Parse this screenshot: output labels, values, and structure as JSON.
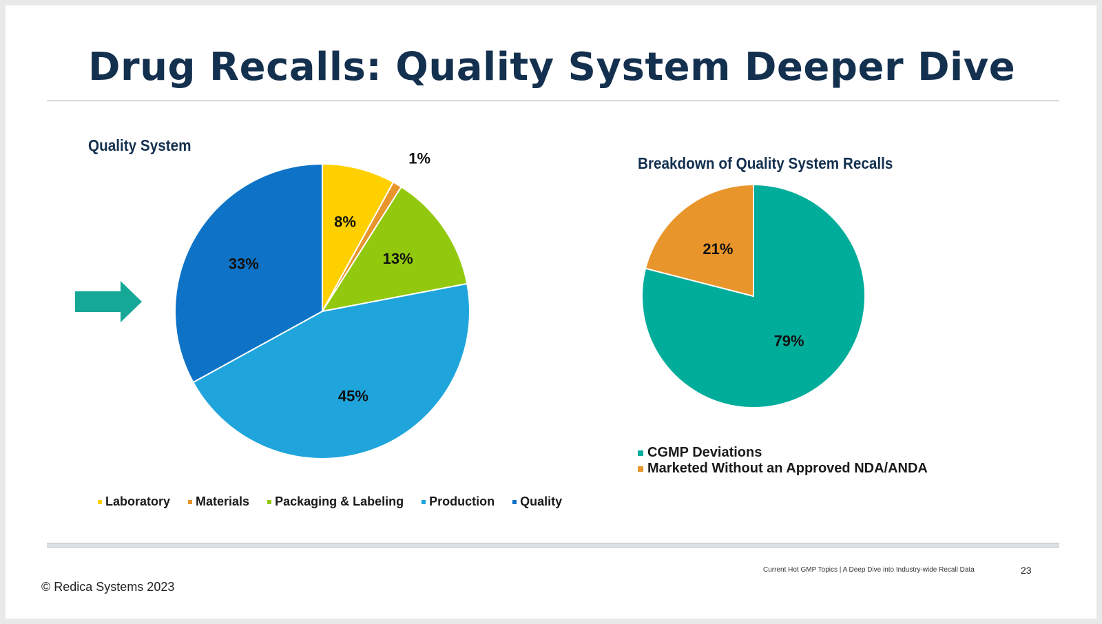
{
  "slide": {
    "title": "Drug Recalls: Quality System Deeper Dive",
    "footer_text": "Current Hot GMP Topics |  A Deep Dive into Industry-wide Recall Data",
    "page_number": "23",
    "copyright": "© Redica Systems 2023",
    "arrow_icon": "right-arrow-icon",
    "arrow_color": "#16a896"
  },
  "chart_data": [
    {
      "type": "pie",
      "title": "Quality System",
      "categories": [
        "Laboratory",
        "Materials",
        "Packaging & Labeling",
        "Production",
        "Quality"
      ],
      "values": [
        8,
        1,
        13,
        45,
        33
      ],
      "data_labels": [
        "8%",
        "1%",
        "13%",
        "45%",
        "33%"
      ],
      "colors": [
        "#ffd000",
        "#e8952b",
        "#92c90e",
        "#1fa5dc",
        "#0e73c6"
      ],
      "legend_position": "bottom"
    },
    {
      "type": "pie",
      "title": "Breakdown of Quality System Recalls",
      "categories": [
        "CGMP Deviations",
        "Marketed Without an Approved NDA/ANDA"
      ],
      "values": [
        79,
        21
      ],
      "data_labels": [
        "79%",
        "21%"
      ],
      "colors": [
        "#00ad9a",
        "#e8952b"
      ],
      "legend_position": "bottom-left"
    }
  ]
}
